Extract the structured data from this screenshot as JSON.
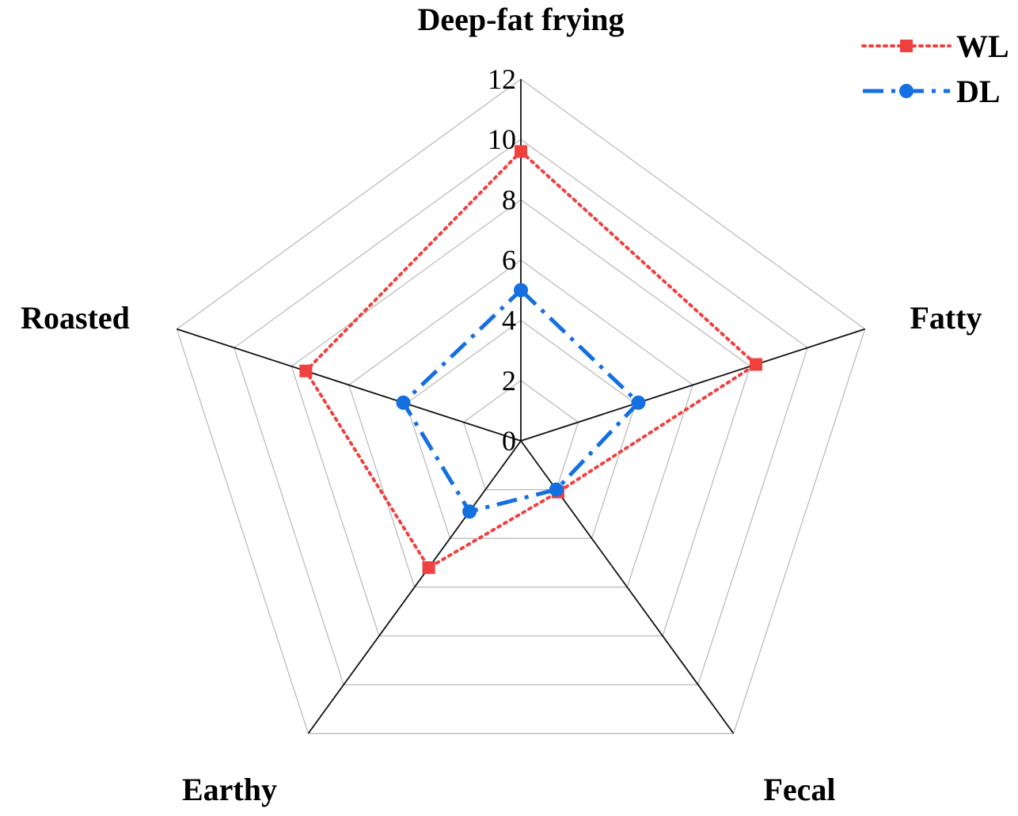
{
  "chart_data": {
    "type": "radar",
    "axes": [
      "Deep-fat frying",
      "Fatty",
      "Fecal",
      "Earthy",
      "Roasted"
    ],
    "rlim": [
      0,
      12
    ],
    "ticks": [
      "0",
      "2",
      "4",
      "6",
      "8",
      "10",
      "12"
    ],
    "tick_values": [
      0,
      2,
      4,
      6,
      8,
      10,
      12
    ],
    "grid": true,
    "legend_position": "top-right",
    "series": [
      {
        "name": "WL",
        "values": [
          9.6,
          8.2,
          2.1,
          5.2,
          7.5
        ],
        "color": "#f04040",
        "line": "dotted",
        "marker": "square"
      },
      {
        "name": "DL",
        "values": [
          5.0,
          4.1,
          2.0,
          2.9,
          4.1
        ],
        "color": "#1470e0",
        "line": "dash-dot",
        "marker": "circle"
      }
    ]
  }
}
